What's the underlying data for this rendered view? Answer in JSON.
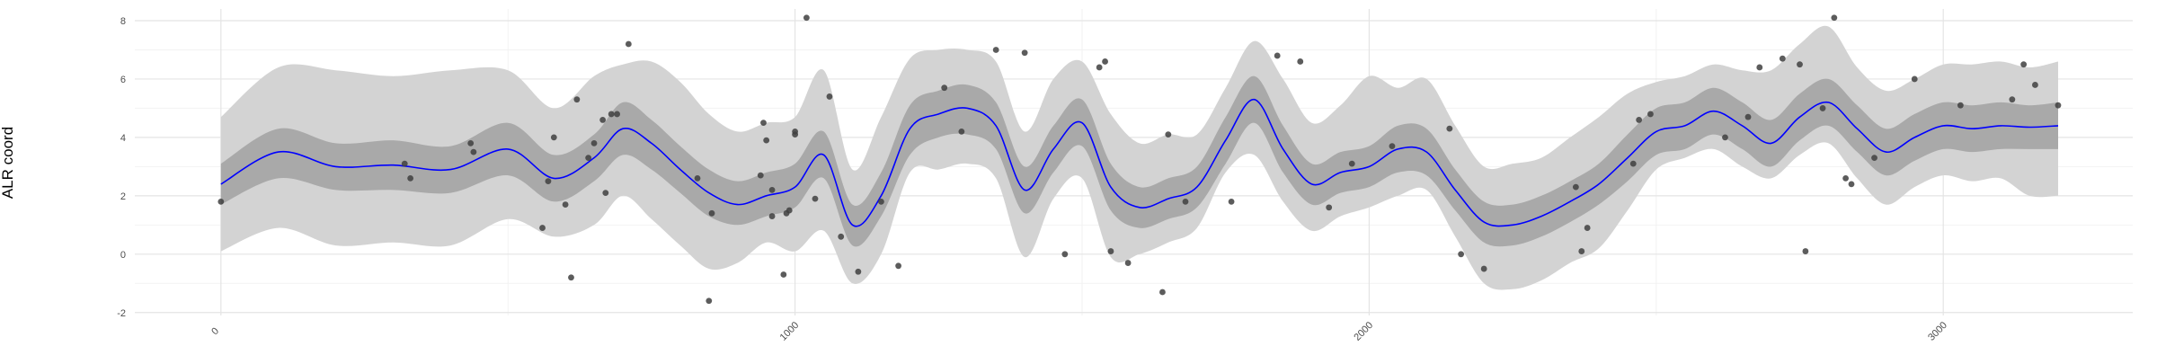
{
  "chart_data": {
    "type": "line",
    "title": "",
    "xlabel": "",
    "ylabel": "ALR coord",
    "xlim": [
      -150,
      3330
    ],
    "ylim": [
      -2.1,
      8.4
    ],
    "x_ticks": [
      0,
      1000,
      2000,
      3000
    ],
    "x_tick_labels": [
      "0",
      "1000",
      "2000",
      "3000"
    ],
    "y_ticks": [
      -2,
      0,
      2,
      4,
      6,
      8
    ],
    "y_tick_labels": [
      "-2",
      "0",
      "2",
      "4",
      "6",
      "8"
    ],
    "grid": true,
    "colors": {
      "line": "#0000ff",
      "inner_band": "#a9a9a9",
      "outer_band": "#d3d3d3",
      "points": "#404040"
    },
    "series": [
      {
        "kind": "line",
        "x": [
          0,
          100,
          200,
          300,
          400,
          500,
          580,
          650,
          700,
          750,
          800,
          850,
          900,
          950,
          1000,
          1050,
          1100,
          1150,
          1200,
          1250,
          1300,
          1350,
          1400,
          1450,
          1500,
          1550,
          1600,
          1650,
          1700,
          1750,
          1800,
          1850,
          1900,
          1950,
          2000,
          2050,
          2100,
          2150,
          2200,
          2250,
          2300,
          2350,
          2400,
          2450,
          2500,
          2550,
          2600,
          2650,
          2700,
          2750,
          2800,
          2850,
          2900,
          2950,
          3000,
          3050,
          3100,
          3150,
          3200
        ],
        "y": [
          2.4,
          3.5,
          3.0,
          3.05,
          2.9,
          3.6,
          2.6,
          3.3,
          4.3,
          3.8,
          2.9,
          2.1,
          1.7,
          2.0,
          2.3,
          3.4,
          1.0,
          2.0,
          4.3,
          4.8,
          5.0,
          4.4,
          2.2,
          3.6,
          4.5,
          2.3,
          1.6,
          1.9,
          2.3,
          3.9,
          5.3,
          3.6,
          2.4,
          2.8,
          3.0,
          3.6,
          3.5,
          2.2,
          1.1,
          1.0,
          1.3,
          1.8,
          2.4,
          3.3,
          4.2,
          4.4,
          4.9,
          4.4,
          3.8,
          4.7,
          5.2,
          4.3,
          3.5,
          4.0,
          4.4,
          4.3,
          4.4,
          4.35,
          4.4
        ]
      },
      {
        "kind": "inner_band",
        "x": [
          0,
          100,
          200,
          300,
          400,
          500,
          580,
          650,
          700,
          750,
          800,
          850,
          900,
          950,
          1000,
          1050,
          1100,
          1150,
          1200,
          1250,
          1300,
          1350,
          1400,
          1450,
          1500,
          1550,
          1600,
          1650,
          1700,
          1750,
          1800,
          1850,
          1900,
          1950,
          2000,
          2050,
          2100,
          2150,
          2200,
          2250,
          2300,
          2350,
          2400,
          2450,
          2500,
          2550,
          2600,
          2650,
          2700,
          2750,
          2800,
          2850,
          2900,
          2950,
          3000,
          3050,
          3100,
          3150,
          3200
        ],
        "lower": [
          1.7,
          2.6,
          2.2,
          2.2,
          2.1,
          2.7,
          1.8,
          2.5,
          3.4,
          2.9,
          2.1,
          1.3,
          1.0,
          1.3,
          1.6,
          2.6,
          0.3,
          1.3,
          3.4,
          4.0,
          4.1,
          3.6,
          1.4,
          2.8,
          3.7,
          1.5,
          0.9,
          1.2,
          1.6,
          3.1,
          4.5,
          2.8,
          1.7,
          2.1,
          2.3,
          2.8,
          2.7,
          1.5,
          0.4,
          0.3,
          0.6,
          1.1,
          1.7,
          2.5,
          3.4,
          3.6,
          4.1,
          3.6,
          3.0,
          3.9,
          4.4,
          3.5,
          2.7,
          3.2,
          3.6,
          3.5,
          3.6,
          3.6,
          3.6
        ],
        "upper": [
          3.1,
          4.3,
          3.8,
          3.9,
          3.7,
          4.5,
          3.4,
          4.1,
          5.2,
          4.6,
          3.7,
          2.9,
          2.5,
          2.8,
          3.1,
          4.2,
          1.7,
          2.8,
          5.1,
          5.6,
          5.8,
          5.2,
          3.0,
          4.4,
          5.3,
          3.1,
          2.3,
          2.6,
          3.0,
          4.7,
          6.1,
          4.4,
          3.1,
          3.5,
          3.7,
          4.4,
          4.3,
          2.9,
          1.8,
          1.7,
          2.0,
          2.5,
          3.1,
          4.1,
          5.0,
          5.2,
          5.7,
          5.2,
          4.6,
          5.5,
          6.0,
          5.1,
          4.3,
          4.8,
          5.2,
          5.1,
          5.2,
          5.1,
          5.2
        ]
      },
      {
        "kind": "outer_band",
        "x": [
          0,
          100,
          200,
          300,
          400,
          500,
          580,
          650,
          700,
          750,
          800,
          850,
          900,
          950,
          1000,
          1050,
          1100,
          1150,
          1200,
          1250,
          1300,
          1350,
          1400,
          1450,
          1500,
          1550,
          1600,
          1650,
          1700,
          1750,
          1800,
          1850,
          1900,
          1950,
          2000,
          2050,
          2100,
          2150,
          2200,
          2250,
          2300,
          2350,
          2400,
          2450,
          2500,
          2550,
          2600,
          2650,
          2700,
          2750,
          2800,
          2850,
          2900,
          2950,
          3000,
          3050,
          3100,
          3150,
          3200
        ],
        "lower": [
          0.1,
          0.9,
          0.3,
          0.4,
          0.3,
          1.2,
          0.6,
          1.0,
          2.0,
          1.2,
          0.3,
          -0.5,
          -0.3,
          0.4,
          0.1,
          0.8,
          -1.0,
          0.0,
          2.8,
          2.9,
          3.1,
          2.6,
          -0.1,
          1.9,
          2.6,
          -0.1,
          0.0,
          0.4,
          0.9,
          2.8,
          3.4,
          1.8,
          0.8,
          1.3,
          1.6,
          2.0,
          2.2,
          0.6,
          -1.0,
          -1.2,
          -0.9,
          -0.3,
          0.2,
          1.5,
          2.9,
          3.3,
          3.6,
          3.0,
          2.6,
          3.4,
          3.8,
          2.6,
          1.7,
          2.3,
          2.7,
          2.5,
          2.6,
          2.0,
          2.0
        ],
        "upper": [
          4.7,
          6.4,
          6.3,
          6.1,
          6.3,
          6.3,
          5.0,
          6.1,
          6.5,
          6.6,
          5.9,
          4.8,
          4.2,
          4.5,
          4.7,
          6.3,
          2.9,
          4.7,
          6.7,
          7.0,
          7.0,
          6.6,
          4.2,
          6.0,
          6.6,
          4.8,
          3.8,
          4.1,
          4.1,
          5.7,
          7.3,
          6.0,
          4.5,
          5.1,
          6.1,
          5.7,
          6.0,
          4.4,
          3.0,
          3.1,
          3.3,
          4.0,
          4.7,
          5.5,
          5.9,
          6.1,
          6.5,
          6.3,
          6.3,
          7.2,
          7.8,
          6.4,
          5.6,
          6.0,
          6.5,
          6.5,
          6.6,
          6.4,
          6.6
        ]
      },
      {
        "kind": "points",
        "x": [
          0,
          320,
          330,
          435,
          440,
          560,
          570,
          580,
          600,
          610,
          620,
          640,
          650,
          665,
          680,
          670,
          690,
          710,
          830,
          850,
          855,
          940,
          945,
          950,
          960,
          960,
          980,
          985,
          990,
          1000,
          1000,
          1020,
          1035,
          1060,
          1080,
          1110,
          1150,
          1180,
          1260,
          1290,
          1350,
          1400,
          1470,
          1530,
          1540,
          1550,
          1580,
          1650,
          1640,
          1680,
          1760,
          1840,
          1880,
          1930,
          1970,
          2040,
          2140,
          2160,
          2200,
          2360,
          2370,
          2380,
          2460,
          2470,
          2490,
          2620,
          2660,
          2680,
          2720,
          2750,
          2760,
          2790,
          2810,
          2830,
          2840,
          2880,
          2950,
          3030,
          3120,
          3140,
          3160,
          3200
        ],
        "y": [
          1.8,
          3.1,
          2.6,
          3.8,
          3.5,
          0.9,
          2.5,
          4.0,
          1.7,
          -0.8,
          5.3,
          3.3,
          3.8,
          4.6,
          4.8,
          2.1,
          4.8,
          7.2,
          2.6,
          -1.6,
          1.4,
          2.7,
          4.5,
          3.9,
          2.2,
          1.3,
          -0.7,
          1.4,
          1.5,
          4.1,
          4.2,
          8.1,
          1.9,
          5.4,
          0.6,
          -0.6,
          1.8,
          -0.4,
          5.7,
          4.2,
          7.0,
          6.9,
          0.0,
          6.4,
          6.6,
          0.1,
          -0.3,
          4.1,
          -1.3,
          1.8,
          1.8,
          6.8,
          6.6,
          1.6,
          3.1,
          3.7,
          4.3,
          0.0,
          -0.5,
          2.3,
          0.1,
          0.9,
          3.1,
          4.6,
          4.8,
          4.0,
          4.7,
          6.4,
          6.7,
          6.5,
          0.1,
          5.0,
          8.1,
          2.6,
          2.4,
          3.3,
          6.0,
          5.1,
          5.3,
          6.5,
          5.8,
          5.1
        ]
      }
    ]
  }
}
